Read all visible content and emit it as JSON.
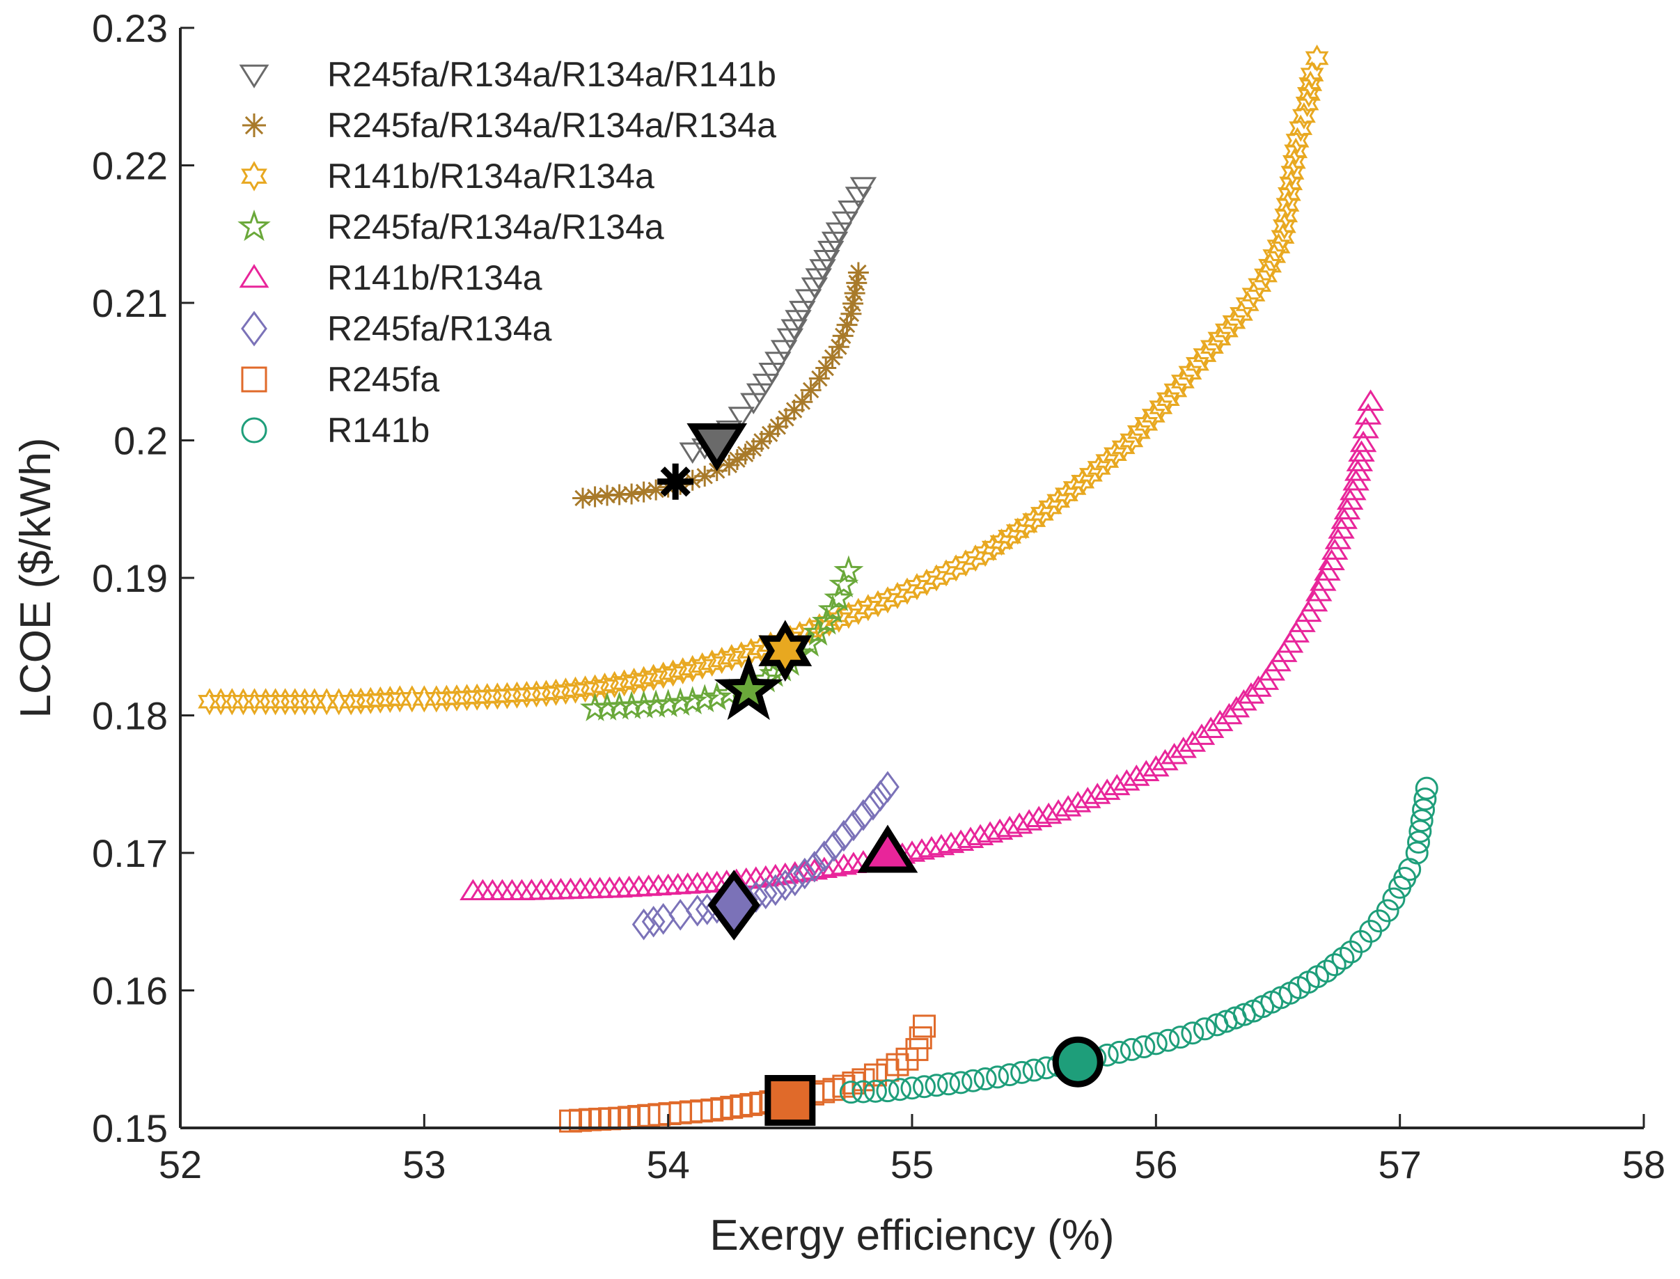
{
  "chart_data": {
    "type": "scatter",
    "title": "",
    "xlabel": "Exergy efficiency (%)",
    "ylabel": "LCOE ($/kWh)",
    "xlim": [
      52,
      58
    ],
    "ylim": [
      0.15,
      0.23
    ],
    "xticks": [
      52,
      53,
      54,
      55,
      56,
      57,
      58
    ],
    "yticks": [
      0.15,
      0.16,
      0.17,
      0.18,
      0.19,
      0.2,
      0.21,
      0.22,
      0.23
    ],
    "xtick_labels": [
      "52",
      "53",
      "54",
      "55",
      "56",
      "57",
      "58"
    ],
    "ytick_labels": [
      "0.15",
      "0.16",
      "0.17",
      "0.18",
      "0.19",
      "0.2",
      "0.21",
      "0.22",
      "0.23"
    ],
    "grid": false,
    "legend_position": "top-left",
    "series": [
      {
        "name": "R245fa/R134a/R134a/R141b",
        "marker": "triangle-down",
        "color": "#6a6a6a",
        "x": [
          54.1,
          54.15,
          54.2,
          54.25,
          54.3,
          54.35,
          54.4,
          54.45,
          54.5,
          54.55,
          54.6,
          54.65,
          54.7,
          54.75,
          54.78,
          54.8
        ],
        "y": [
          0.1992,
          0.1995,
          0.2,
          0.2008,
          0.2018,
          0.2028,
          0.2042,
          0.2058,
          0.2075,
          0.2095,
          0.2112,
          0.2132,
          0.2152,
          0.2168,
          0.2178,
          0.2185
        ],
        "optimal": {
          "x": 54.2,
          "y": 0.1998
        }
      },
      {
        "name": "R245fa/R134a/R134a/R134a",
        "marker": "asterisk",
        "color": "#a87a2a",
        "x": [
          53.65,
          53.75,
          53.85,
          53.95,
          54.05,
          54.15,
          54.25,
          54.35,
          54.45,
          54.55,
          54.62,
          54.7,
          54.75,
          54.78
        ],
        "y": [
          0.1958,
          0.196,
          0.1961,
          0.1964,
          0.1968,
          0.1974,
          0.1982,
          0.1994,
          0.201,
          0.2028,
          0.2045,
          0.2068,
          0.2092,
          0.2122
        ],
        "optimal": {
          "x": 54.03,
          "y": 0.197
        }
      },
      {
        "name": "R141b/R134a/R134a",
        "marker": "hexagram",
        "color": "#e8a820",
        "x": [
          52.12,
          52.35,
          52.55,
          52.7,
          52.9,
          53.05,
          53.3,
          53.5,
          53.7,
          53.9,
          54.1,
          54.3,
          54.5,
          54.7,
          54.9,
          55.1,
          55.3,
          55.5,
          55.7,
          55.9,
          56.05,
          56.2,
          56.35,
          56.45,
          56.52,
          56.58,
          56.62,
          56.64,
          56.66
        ],
        "y": [
          0.181,
          0.181,
          0.181,
          0.181,
          0.1812,
          0.1812,
          0.1814,
          0.1816,
          0.182,
          0.1826,
          0.1834,
          0.1844,
          0.1856,
          0.187,
          0.1884,
          0.19,
          0.1918,
          0.1942,
          0.197,
          0.2,
          0.203,
          0.2062,
          0.2092,
          0.212,
          0.2148,
          0.2218,
          0.2245,
          0.2266,
          0.2278
        ],
        "optimal": {
          "x": 54.48,
          "y": 0.1847
        }
      },
      {
        "name": "R245fa/R134a/R134a",
        "marker": "pentagram",
        "color": "#6aa83a",
        "x": [
          53.7,
          53.8,
          53.9,
          54.0,
          54.1,
          54.2,
          54.3,
          54.4,
          54.5,
          54.58,
          54.65,
          54.7,
          54.74
        ],
        "y": [
          0.1805,
          0.1806,
          0.1807,
          0.1808,
          0.181,
          0.1813,
          0.1818,
          0.1826,
          0.1838,
          0.1852,
          0.1868,
          0.1885,
          0.1905
        ],
        "optimal": {
          "x": 54.33,
          "y": 0.1818
        }
      },
      {
        "name": "R141b/R134a",
        "marker": "triangle-up",
        "color": "#e8259a",
        "x": [
          53.2,
          53.4,
          53.6,
          53.8,
          54.0,
          54.2,
          54.4,
          54.6,
          54.8,
          55.0,
          55.2,
          55.4,
          55.6,
          55.8,
          56.0,
          56.15,
          56.3,
          56.45,
          56.55,
          56.65,
          56.72,
          56.76,
          56.82,
          56.85,
          56.87,
          56.88
        ],
        "y": [
          0.1672,
          0.1672,
          0.1673,
          0.1674,
          0.1676,
          0.1678,
          0.1682,
          0.1687,
          0.1693,
          0.17,
          0.1708,
          0.1718,
          0.173,
          0.1745,
          0.1762,
          0.178,
          0.18,
          0.1825,
          0.1852,
          0.1882,
          0.1912,
          0.1935,
          0.197,
          0.1998,
          0.2018,
          0.2028
        ],
        "optimal": {
          "x": 54.9,
          "y": 0.17
        }
      },
      {
        "name": "R245fa/R134a",
        "marker": "diamond",
        "color": "#7b72b8",
        "x": [
          53.9,
          53.98,
          54.05,
          54.12,
          54.2,
          54.28,
          54.36,
          54.44,
          54.52,
          54.6,
          54.68,
          54.76,
          54.84,
          54.9
        ],
        "y": [
          0.1648,
          0.1652,
          0.1655,
          0.1658,
          0.166,
          0.1664,
          0.1668,
          0.1673,
          0.168,
          0.169,
          0.1705,
          0.172,
          0.1735,
          0.1748
        ],
        "optimal": {
          "x": 54.27,
          "y": 0.1662
        }
      },
      {
        "name": "R245fa",
        "marker": "square",
        "color": "#e06a2a",
        "x": [
          53.6,
          53.68,
          53.8,
          53.92,
          54.05,
          54.18,
          54.3,
          54.42,
          54.55,
          54.68,
          54.8,
          54.9,
          54.98,
          55.02,
          55.05
        ],
        "y": [
          0.1505,
          0.1506,
          0.1507,
          0.1509,
          0.1511,
          0.1513,
          0.1516,
          0.1519,
          0.1523,
          0.1528,
          0.1535,
          0.1542,
          0.155,
          0.1557,
          0.1574
        ],
        "optimal": {
          "x": 54.5,
          "y": 0.152
        }
      },
      {
        "name": "R141b",
        "marker": "circle",
        "color": "#1e9e7a",
        "x": [
          54.75,
          54.9,
          55.05,
          55.2,
          55.35,
          55.5,
          55.65,
          55.8,
          55.95,
          56.1,
          56.25,
          56.4,
          56.55,
          56.7,
          56.8,
          56.88,
          56.95,
          57.0,
          57.04,
          57.07,
          57.11
        ],
        "y": [
          0.1526,
          0.1527,
          0.153,
          0.1533,
          0.1537,
          0.1542,
          0.1547,
          0.1553,
          0.1559,
          0.1566,
          0.1575,
          0.1585,
          0.1598,
          0.1614,
          0.1628,
          0.1643,
          0.1658,
          0.1675,
          0.1688,
          0.17,
          0.1747
        ],
        "optimal": {
          "x": 55.68,
          "y": 0.1548
        }
      }
    ]
  }
}
